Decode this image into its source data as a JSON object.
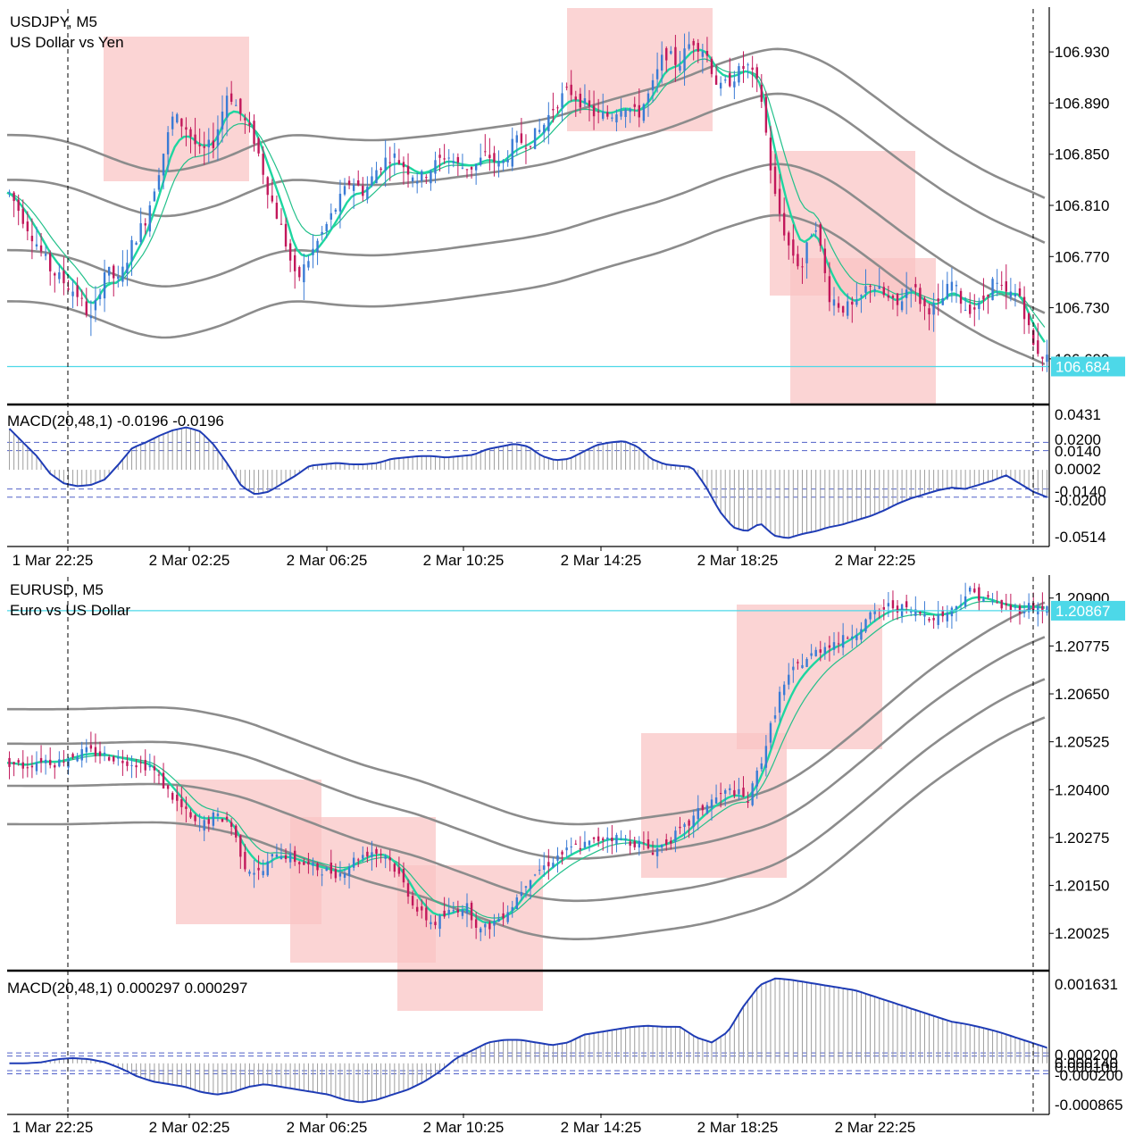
{
  "colors": {
    "background": "#ffffff",
    "bull_candle": "#3a7bd5",
    "bear_candle": "#c2185b",
    "ma_fast": "#1ed6a0",
    "ma_slow": "#22c08a",
    "ma_long": "#8c8c8c",
    "zone_fill": "#f9c4c4",
    "current_price_line": "#4dd8e8",
    "current_price_tag": "#4dd8e8",
    "macd_bar": "#9e9e9e",
    "macd_signal": "#1f3cb5",
    "macd_level": "#5060c8",
    "separator": "#000000"
  },
  "time_axis": [
    "1 Mar 22:25",
    "2 Mar 02:25",
    "2 Mar 06:25",
    "2 Mar 10:25",
    "2 Mar 14:25",
    "2 Mar 18:25",
    "2 Mar 22:25"
  ],
  "chart_data": [
    {
      "type": "candlestick",
      "symbol": "USDJPY, M5",
      "description": "US Dollar vs Yen",
      "y_ticks": [
        "106.930",
        "106.890",
        "106.850",
        "106.810",
        "106.770",
        "106.730",
        "106.690"
      ],
      "ylim": [
        106.655,
        106.965
      ],
      "current_price": "106.684",
      "current_price_value": 106.684,
      "series": [
        {
          "name": "close",
          "values": [
            106.82,
            106.8,
            106.78,
            106.76,
            106.75,
            106.74,
            106.72,
            106.76,
            106.75,
            106.78,
            106.8,
            106.84,
            106.88,
            106.87,
            106.85,
            106.86,
            106.9,
            106.88,
            106.86,
            106.82,
            106.79,
            106.75,
            106.77,
            106.79,
            106.81,
            106.83,
            106.82,
            106.84,
            106.85,
            106.84,
            106.83,
            106.84,
            106.85,
            106.84,
            106.84,
            106.85,
            106.84,
            106.86,
            106.86,
            106.87,
            106.89,
            106.9,
            106.89,
            106.88,
            106.88,
            106.89,
            106.88,
            106.9,
            106.93,
            106.92,
            106.94,
            106.93,
            106.9,
            106.91,
            106.92,
            106.9,
            106.82,
            106.78,
            106.76,
            106.8,
            106.74,
            106.73,
            106.73,
            106.75,
            106.74,
            106.73,
            106.75,
            106.73,
            106.73,
            106.75,
            106.73,
            106.73,
            106.75,
            106.74,
            106.74,
            106.7,
            106.69
          ]
        }
      ]
    },
    {
      "type": "macd",
      "label": "MACD(20,48,1) -0.0196 -0.0196",
      "y_ticks": [
        "0.0431",
        "0.0200",
        "0.0140",
        "0.0002",
        "-0.0140",
        "-0.0200",
        "-0.0514"
      ],
      "ylim": [
        -0.056,
        0.047
      ],
      "levels": [
        0.02,
        0.014,
        -0.014,
        -0.02
      ],
      "values": [
        0.03,
        0.02,
        0.01,
        -0.003,
        -0.01,
        -0.012,
        -0.011,
        -0.007,
        0.004,
        0.016,
        0.02,
        0.025,
        0.029,
        0.031,
        0.028,
        0.018,
        0.004,
        -0.012,
        -0.018,
        -0.016,
        -0.01,
        -0.004,
        0.003,
        0.004,
        0.005,
        0.004,
        0.004,
        0.005,
        0.008,
        0.009,
        0.01,
        0.01,
        0.009,
        0.01,
        0.011,
        0.015,
        0.017,
        0.019,
        0.017,
        0.01,
        0.007,
        0.008,
        0.013,
        0.018,
        0.02,
        0.021,
        0.017,
        0.008,
        0.004,
        0.003,
        0.002,
        -0.012,
        -0.03,
        -0.042,
        -0.045,
        -0.039,
        -0.048,
        -0.05,
        -0.047,
        -0.045,
        -0.042,
        -0.04,
        -0.037,
        -0.034,
        -0.03,
        -0.025,
        -0.021,
        -0.018,
        -0.015,
        -0.013,
        -0.014,
        -0.011,
        -0.008,
        -0.004,
        -0.01,
        -0.016,
        -0.02
      ]
    },
    {
      "type": "candlestick",
      "symbol": "EURUSD, M5",
      "description": "Euro vs US Dollar",
      "y_ticks": [
        "1.20900",
        "1.20775",
        "1.20650",
        "1.20525",
        "1.20400",
        "1.20275",
        "1.20150",
        "1.20025"
      ],
      "ylim": [
        1.1993,
        1.2096
      ],
      "current_price": "1.20867",
      "current_price_value": 1.20867,
      "series": [
        {
          "name": "close",
          "values": [
            1.2047,
            1.2046,
            1.2048,
            1.2047,
            1.2049,
            1.205,
            1.2049,
            1.2048,
            1.2047,
            1.2046,
            1.204,
            1.2035,
            1.203,
            1.2033,
            1.2032,
            1.202,
            1.2018,
            1.2024,
            1.2022,
            1.202,
            1.2019,
            1.2018,
            1.2022,
            1.2024,
            1.2023,
            1.2016,
            1.2008,
            1.2005,
            1.2008,
            1.201,
            1.2003,
            1.2006,
            1.201,
            1.2017,
            1.202,
            1.2023,
            1.2025,
            1.2026,
            1.2028,
            1.2027,
            1.2026,
            1.2024,
            1.2027,
            1.203,
            1.2035,
            1.2038,
            1.204,
            1.2037,
            1.205,
            1.2065,
            1.2072,
            1.2075,
            1.2078,
            1.2079,
            1.2082,
            1.2086,
            1.2088,
            1.2087,
            1.2086,
            1.2085,
            1.2087,
            1.2092,
            1.209,
            1.2088,
            1.2087,
            1.2088,
            1.2087
          ]
        }
      ]
    },
    {
      "type": "macd",
      "label": "MACD(20,48,1) 0.000297 0.000297",
      "y_ticks": [
        "0.001631",
        "0.000200",
        "0.000140",
        "0.000100",
        "-0.000200",
        "-0.000865"
      ],
      "ylim": [
        -0.00098,
        0.00176
      ],
      "levels": [
        0.0002,
        0.00014,
        -0.00014,
        -0.0002
      ],
      "values": [
        0.0,
        0.0,
        2e-05,
        8e-05,
        0.0001,
        8e-05,
        2e-05,
        -0.0001,
        -0.00025,
        -0.00035,
        -0.0004,
        -0.00045,
        -0.00055,
        -0.0006,
        -0.00055,
        -0.00045,
        -0.0004,
        -0.00045,
        -0.0005,
        -0.00055,
        -0.0006,
        -0.0007,
        -0.00075,
        -0.0007,
        -0.0006,
        -0.0005,
        -0.00035,
        -0.00015,
        0.0001,
        0.00025,
        0.0004,
        0.00045,
        0.00045,
        0.0004,
        0.00035,
        0.0004,
        0.00055,
        0.0006,
        0.00065,
        0.0007,
        0.00072,
        0.0007,
        0.0007,
        0.0005,
        0.0004,
        0.0006,
        0.0011,
        0.0015,
        0.00163,
        0.0016,
        0.00155,
        0.0015,
        0.00145,
        0.0014,
        0.0013,
        0.0012,
        0.0011,
        0.001,
        0.0009,
        0.0008,
        0.00075,
        0.00068,
        0.0006,
        0.0005,
        0.0004,
        0.0003
      ]
    }
  ]
}
